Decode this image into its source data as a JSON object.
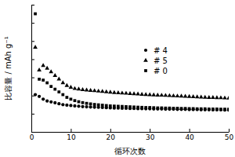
{
  "chart_data": {
    "type": "scatter",
    "x_label": "循环次数",
    "y_label": "比容量 / mAh g⁻¹",
    "x": [
      1,
      2,
      3,
      4,
      5,
      6,
      7,
      8,
      9,
      10,
      11,
      12,
      13,
      14,
      15,
      16,
      17,
      18,
      19,
      20,
      21,
      22,
      23,
      24,
      25,
      26,
      27,
      28,
      29,
      30,
      31,
      32,
      33,
      34,
      35,
      36,
      37,
      38,
      39,
      40,
      41,
      42,
      43,
      44,
      45,
      46,
      47,
      48,
      49,
      50
    ],
    "series": [
      {
        "name": "# 4",
        "color": "#000000",
        "marker": "circle",
        "values": [
          205,
          195,
          180,
          170,
          165,
          160,
          155,
          150,
          147,
          145,
          143,
          141,
          139,
          138,
          137,
          136,
          135,
          134,
          133,
          132,
          131,
          131,
          130,
          130,
          129,
          129,
          128,
          128,
          127,
          127,
          126,
          126,
          126,
          125,
          125,
          125,
          124,
          124,
          124,
          123,
          123,
          123,
          122,
          122,
          122,
          121,
          121,
          121,
          120,
          120
        ]
      },
      {
        "name": "# 5",
        "color": "#000000",
        "marker": "triangle",
        "values": [
          465,
          340,
          365,
          350,
          330,
          310,
          290,
          270,
          255,
          245,
          238,
          235,
          232,
          230,
          228,
          226,
          224,
          222,
          220,
          218,
          216,
          215,
          213,
          212,
          210,
          209,
          208,
          206,
          205,
          204,
          203,
          202,
          201,
          200,
          199,
          198,
          197,
          196,
          195,
          194,
          193,
          192,
          191,
          190,
          189,
          189,
          188,
          187,
          186,
          185
        ]
      },
      {
        "name": "# 0",
        "color": "#000000",
        "marker": "square",
        "values": [
          650,
          290,
          285,
          270,
          250,
          235,
          220,
          205,
          190,
          180,
          172,
          166,
          161,
          157,
          154,
          151,
          149,
          147,
          145,
          143,
          142,
          141,
          140,
          139,
          138,
          137,
          136,
          135,
          134,
          134,
          133,
          132,
          132,
          131,
          131,
          130,
          130,
          129,
          129,
          128,
          128,
          127,
          127,
          127,
          126,
          126,
          126,
          125,
          125,
          125
        ]
      }
    ],
    "xlim": [
      0,
      50
    ],
    "xticks": [
      0,
      10,
      20,
      30,
      40,
      50
    ],
    "ylim": [
      0,
      700
    ],
    "yticks": [
      0,
      100,
      200,
      300,
      400,
      500,
      600,
      700
    ],
    "tick_labels": "x",
    "legend": "upper right",
    "grid": false
  }
}
